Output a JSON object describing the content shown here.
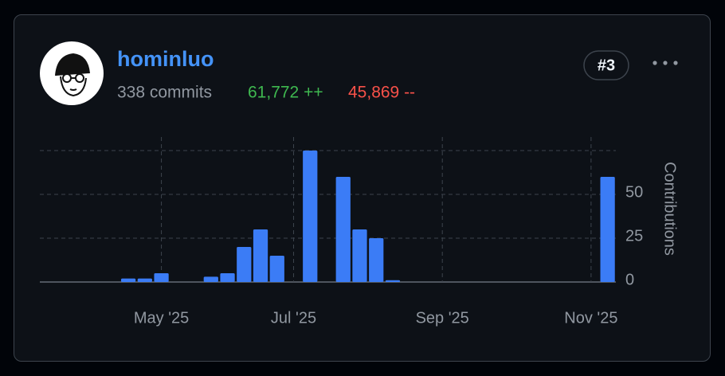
{
  "header": {
    "name": "hominluo",
    "commits": "338 commits",
    "additions": "61,772 ++",
    "deletions": "45,869 --",
    "rank": "#3"
  },
  "chart_data": {
    "type": "bar",
    "y_label": "Contributions",
    "color": "#3b7cf6",
    "categories": [
      null,
      null,
      null,
      null,
      null,
      null,
      null,
      "May '25",
      null,
      null,
      null,
      null,
      null,
      null,
      null,
      "Jul '25",
      null,
      null,
      null,
      null,
      null,
      null,
      null,
      null,
      "Sep '25",
      null,
      null,
      null,
      null,
      null,
      null,
      null,
      null,
      "Nov '25",
      null
    ],
    "values": [
      0,
      0,
      0,
      0,
      0,
      2,
      2,
      5,
      0,
      0,
      3,
      5,
      20,
      30,
      15,
      0,
      75,
      0,
      60,
      30,
      25,
      1,
      0,
      0,
      0,
      0,
      0,
      0,
      0,
      0,
      0,
      0,
      0,
      0,
      60
    ],
    "ylim": [
      0,
      75
    ],
    "yticks": [
      0,
      25,
      50
    ],
    "grid": true
  }
}
